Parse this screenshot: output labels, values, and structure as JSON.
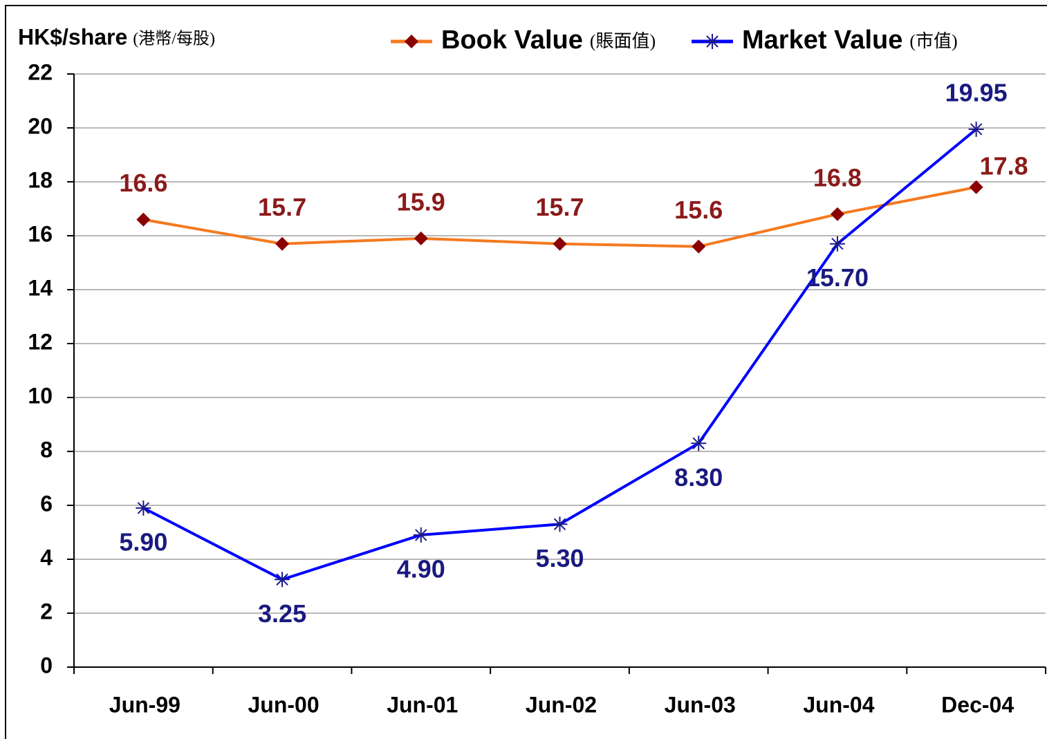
{
  "chart_data": {
    "type": "line",
    "ylabel": "HK$/share",
    "ylabel_note": "(港幣/每股)",
    "categories": [
      "Jun-99",
      "Jun-00",
      "Jun-01",
      "Jun-02",
      "Jun-03",
      "Jun-04",
      "Dec-04"
    ],
    "series": [
      {
        "name": "Book Value",
        "name_note": "(賬面值)",
        "color": "#f47a20",
        "marker_color": "#8b0000",
        "label_color": "#8b1a1a",
        "marker": "diamond",
        "values": [
          16.6,
          15.7,
          15.9,
          15.7,
          15.6,
          16.8,
          17.8
        ]
      },
      {
        "name": "Market Value",
        "name_note": "(市值)",
        "color": "#0000ff",
        "marker_color": "#1a1a8c",
        "label_color": "#1a1a80",
        "marker": "star",
        "values": [
          5.9,
          3.25,
          4.9,
          5.3,
          8.3,
          15.7,
          19.95
        ],
        "value_labels": [
          "5.90",
          "3.25",
          "4.90",
          "5.30",
          "8.30",
          "15.70",
          "19.95"
        ]
      }
    ],
    "ylim": [
      0,
      22
    ],
    "yticks": [
      0,
      2,
      4,
      6,
      8,
      10,
      12,
      14,
      16,
      18,
      20,
      22
    ],
    "grid": true,
    "legend": "top"
  }
}
